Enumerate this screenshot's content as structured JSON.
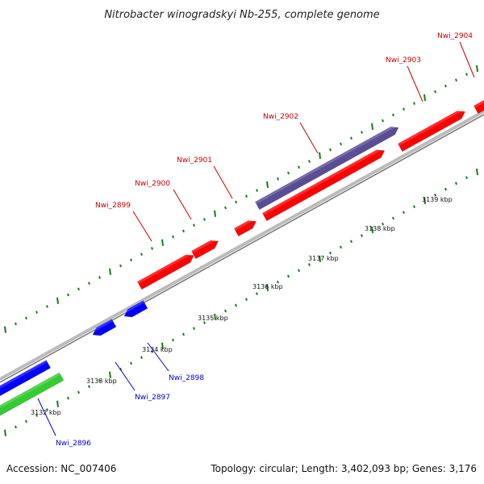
{
  "title": "Nitrobacter winogradskyi Nb-255, complete genome",
  "accession_text": "Accession: NC_007406",
  "topology_text": "Topology: circular; Length: 3,402,093 bp; Genes: 3,176",
  "colors": {
    "forward_gene": "#ff0000",
    "reverse_gene": "#0000ff",
    "rrna_gene": "#33cc33",
    "overlap_gene": "#5a4d96",
    "backbone": "#999999",
    "tick": "#1a7a1a",
    "forward_label": "#cc0000",
    "reverse_label": "#0000cc"
  },
  "tick_labels": [
    "3132 kbp",
    "3133 kbp",
    "3134 kbp",
    "3135 kbp",
    "3136 kbp",
    "3137 kbp",
    "3138 kbp",
    "3139 kbp"
  ],
  "genes": [
    {
      "name": "Nwi_2896",
      "strand": "reverse",
      "color": "rrna"
    },
    {
      "name": "Nwi_2897",
      "strand": "reverse",
      "color": "reverse"
    },
    {
      "name": "Nwi_2898",
      "strand": "reverse",
      "color": "reverse"
    },
    {
      "name": "Nwi_2899",
      "strand": "forward",
      "color": "forward"
    },
    {
      "name": "Nwi_2900",
      "strand": "forward",
      "color": "forward"
    },
    {
      "name": "Nwi_2901",
      "strand": "forward",
      "color": "forward"
    },
    {
      "name": "Nwi_2902",
      "strand": "forward",
      "color": "overlap"
    },
    {
      "name": "Nwi_2903",
      "strand": "forward",
      "color": "forward"
    },
    {
      "name": "Nwi_2904",
      "strand": "forward",
      "color": "forward"
    }
  ]
}
